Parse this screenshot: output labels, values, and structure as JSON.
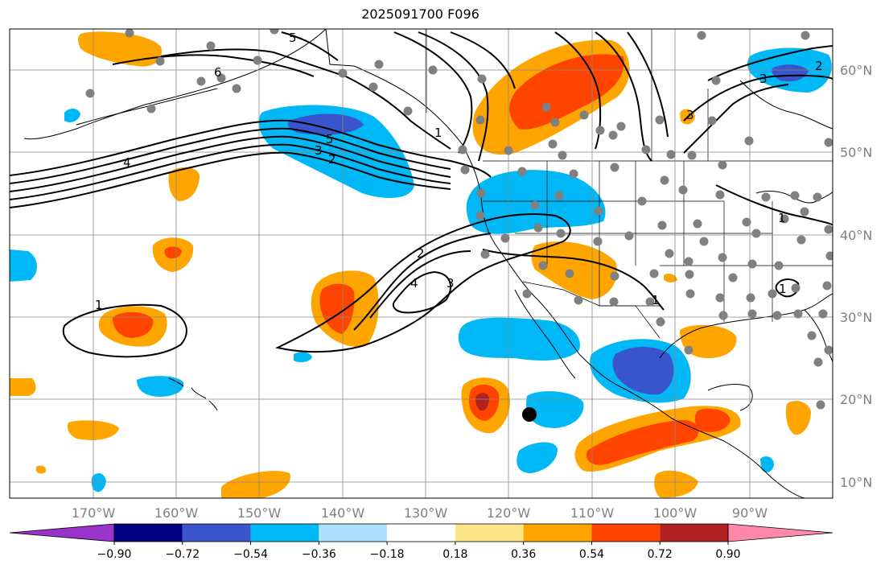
{
  "title": "2025091700 F096",
  "map": {
    "projection": "PlateCarree",
    "lon_range": [
      -178,
      -79
    ],
    "lat_range": [
      8,
      65
    ],
    "lat_labels": [
      "10°N",
      "20°N",
      "30°N",
      "40°N",
      "50°N",
      "60°N"
    ],
    "lon_labels": [
      "170°W",
      "160°W",
      "150°W",
      "140°W",
      "130°W",
      "120°W",
      "110°W",
      "100°W",
      "90°W"
    ],
    "gridlines": true,
    "marker": {
      "label": "storm center",
      "lon": -116.5,
      "lat": 18
    }
  },
  "contours": {
    "labels": [
      "1",
      "2",
      "3",
      "4",
      "5",
      "6",
      "2",
      "3",
      "4",
      "5",
      "1",
      "3",
      "3",
      "2",
      "1",
      "1",
      "1"
    ]
  },
  "colorbar": {
    "ticks": [
      "−0.90",
      "−0.72",
      "−0.54",
      "−0.36",
      "−0.18",
      "0.18",
      "0.36",
      "0.54",
      "0.72",
      "0.90"
    ],
    "colors": [
      "#9933cc",
      "#000080",
      "#3a55cc",
      "#00b8f5",
      "#aee0ff",
      "#ffffff",
      "#fde68a",
      "#ffa500",
      "#ff4400",
      "#b22222",
      "#ff88aa"
    ],
    "extend": "both"
  }
}
